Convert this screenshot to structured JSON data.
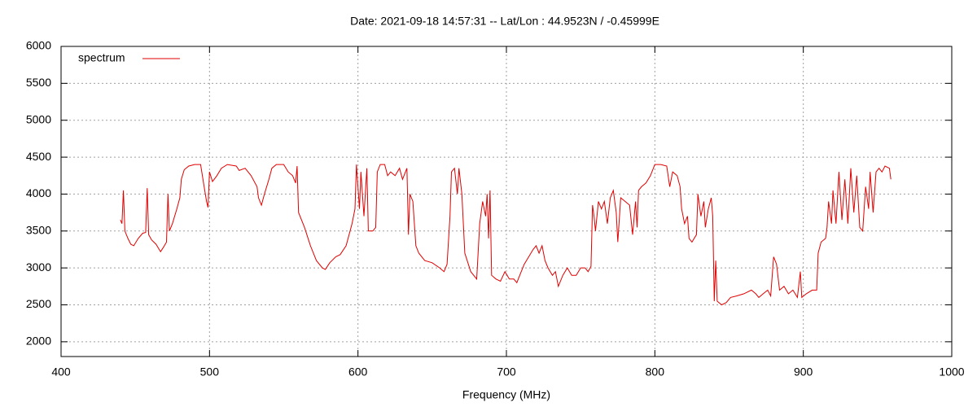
{
  "chart_data": {
    "type": "line",
    "title": "Date: 2021-09-18 14:57:31  --  Lat/Lon : 44.9523N / -0.45999E",
    "x_label": "Frequency (MHz)",
    "x": [
      440,
      441,
      442,
      443,
      445,
      447,
      449,
      452,
      455,
      457,
      458,
      459,
      461,
      464,
      467,
      469,
      471,
      472,
      473,
      475,
      478,
      480,
      481,
      483,
      486,
      490,
      494,
      496,
      498,
      499,
      500,
      502,
      505,
      508,
      512,
      518,
      520,
      524,
      528,
      532,
      533,
      535,
      537,
      540,
      542,
      545,
      550,
      553,
      556,
      558,
      559,
      560,
      564,
      568,
      572,
      576,
      578,
      581,
      585,
      588,
      592,
      596,
      598,
      599,
      601,
      602,
      604,
      606,
      607,
      610,
      612,
      613,
      615,
      618,
      620,
      622,
      625,
      628,
      630,
      633,
      634,
      635,
      637,
      639,
      641,
      645,
      650,
      655,
      658,
      660,
      662,
      663,
      665,
      667,
      668,
      670,
      672,
      676,
      680,
      682,
      684,
      686,
      687,
      688,
      689,
      690,
      693,
      696,
      699,
      702,
      705,
      707,
      709,
      712,
      715,
      718,
      720,
      722,
      724,
      726,
      728,
      731,
      733,
      735,
      738,
      741,
      744,
      747,
      750,
      753,
      755,
      757,
      758,
      759,
      760,
      762,
      764,
      766,
      768,
      770,
      772,
      774,
      775,
      777,
      780,
      783,
      785,
      787,
      788,
      789,
      791,
      794,
      797,
      800,
      804,
      808,
      810,
      812,
      815,
      817,
      818,
      820,
      822,
      823,
      825,
      828,
      829,
      831,
      833,
      834,
      836,
      838,
      839,
      840,
      841,
      842,
      845,
      848,
      851,
      855,
      860,
      865,
      868,
      870,
      873,
      876,
      878,
      880,
      882,
      884,
      887,
      890,
      893,
      896,
      898,
      899,
      902,
      906,
      909,
      910,
      912,
      915,
      916,
      917,
      919,
      920,
      922,
      924,
      926,
      928,
      930,
      932,
      934,
      936,
      938,
      940,
      942,
      944,
      945,
      947,
      949,
      951,
      953,
      955,
      958,
      959
    ],
    "series": [
      {
        "name": "spectrum",
        "color": "#e00000",
        "values": [
          3650,
          3600,
          4050,
          3500,
          3400,
          3320,
          3300,
          3400,
          3470,
          3480,
          4080,
          3450,
          3380,
          3320,
          3220,
          3280,
          3350,
          4000,
          3500,
          3600,
          3800,
          3950,
          4200,
          4330,
          4380,
          4400,
          4400,
          4150,
          3900,
          3820,
          4300,
          4170,
          4250,
          4350,
          4400,
          4380,
          4320,
          4350,
          4250,
          4100,
          3950,
          3850,
          4000,
          4200,
          4350,
          4400,
          4400,
          4300,
          4250,
          4150,
          4380,
          3750,
          3550,
          3300,
          3100,
          3000,
          2980,
          3070,
          3150,
          3180,
          3300,
          3600,
          3800,
          4400,
          3800,
          4300,
          3700,
          4350,
          3500,
          3500,
          3550,
          4300,
          4400,
          4400,
          4250,
          4300,
          4250,
          4350,
          4200,
          4350,
          3450,
          4000,
          3900,
          3300,
          3200,
          3100,
          3070,
          3000,
          2950,
          3050,
          3700,
          4300,
          4350,
          4000,
          4350,
          4000,
          3200,
          2950,
          2850,
          3600,
          3900,
          3700,
          4000,
          3400,
          4050,
          2900,
          2850,
          2820,
          2950,
          2850,
          2850,
          2800,
          2900,
          3050,
          3150,
          3250,
          3300,
          3200,
          3300,
          3100,
          3000,
          2900,
          2950,
          2750,
          2900,
          3000,
          2900,
          2900,
          3000,
          3000,
          2950,
          3020,
          3850,
          3700,
          3500,
          3900,
          3800,
          3900,
          3600,
          3950,
          4050,
          3750,
          3350,
          3950,
          3900,
          3850,
          3450,
          3900,
          3550,
          4050,
          4100,
          4150,
          4250,
          4400,
          4400,
          4380,
          4100,
          4300,
          4250,
          4100,
          3800,
          3600,
          3700,
          3400,
          3350,
          3450,
          4000,
          3700,
          3900,
          3550,
          3800,
          3950,
          3700,
          2550,
          3100,
          2550,
          2500,
          2530,
          2600,
          2620,
          2650,
          2700,
          2650,
          2600,
          2650,
          2700,
          2620,
          3150,
          3050,
          2700,
          2750,
          2650,
          2700,
          2600,
          2950,
          2600,
          2650,
          2700,
          2700,
          3200,
          3350,
          3400,
          3550,
          3900,
          3600,
          4050,
          3600,
          4300,
          3650,
          4200,
          3600,
          4350,
          3750,
          4250,
          3550,
          3500,
          4100,
          3800,
          4300,
          3750,
          4300,
          4350,
          4300,
          4380,
          4350,
          4200
        ]
      }
    ],
    "xlim": [
      400,
      1000
    ],
    "xticks": [
      400,
      500,
      600,
      700,
      800,
      900,
      1000
    ],
    "ylim": [
      1800,
      6000
    ],
    "yticks": [
      2000,
      2500,
      3000,
      3500,
      4000,
      4500,
      5000,
      5500,
      6000
    ],
    "grid": true,
    "legend": "upper left"
  }
}
